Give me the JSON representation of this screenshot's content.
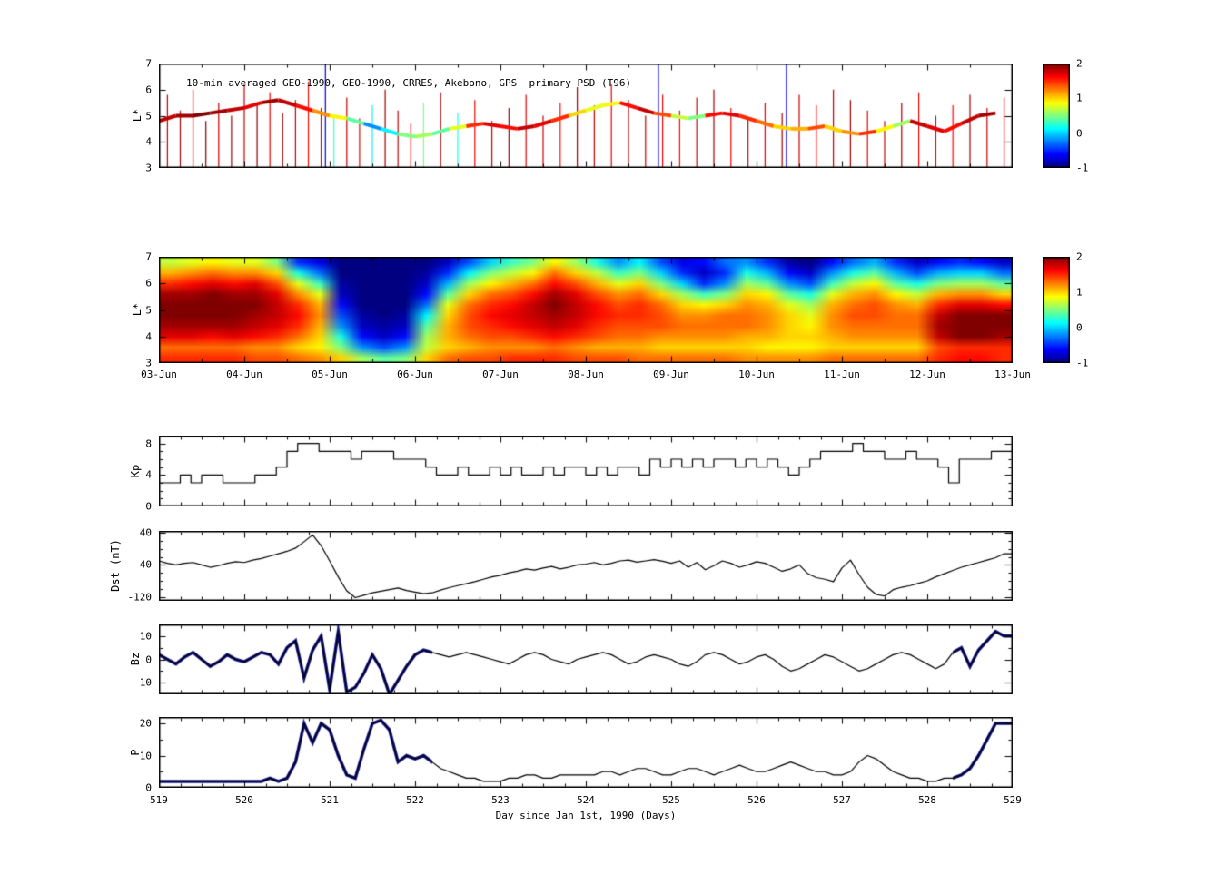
{
  "chart_data": [
    {
      "type": "scatter",
      "title": "10-min averaged GEO-1990, GEO-1990, CRRES, Akebono, GPS  primary PSD (T96)",
      "ylabel": "L*",
      "ylim": [
        3,
        7
      ],
      "yticks": [
        3,
        4,
        5,
        6,
        7
      ],
      "xlim": [
        519,
        529
      ],
      "colorbar": {
        "range": [
          -1,
          2
        ],
        "ticks": [
          2,
          1,
          0,
          -1
        ]
      },
      "geo_track": {
        "t_start": 519.0,
        "dt": 0.2,
        "L": [
          4.8,
          5.0,
          5.0,
          5.1,
          5.2,
          5.3,
          5.5,
          5.6,
          5.4,
          5.2,
          5.0,
          4.9,
          4.7,
          4.5,
          4.3,
          4.2,
          4.3,
          4.5,
          4.6,
          4.7,
          4.6,
          4.5,
          4.6,
          4.8,
          5.0,
          5.2,
          5.4,
          5.5,
          5.3,
          5.1,
          5.0,
          4.9,
          5.0,
          5.1,
          5.0,
          4.8,
          4.6,
          4.5,
          4.5,
          4.6,
          4.4,
          4.3,
          4.4,
          4.6,
          4.8,
          4.6,
          4.4,
          4.7,
          5.0,
          5.1
        ],
        "psd": [
          1.8,
          1.9,
          2.0,
          1.9,
          1.8,
          1.7,
          1.9,
          1.8,
          1.6,
          1.2,
          0.9,
          0.4,
          -0.2,
          0.1,
          0.5,
          0.6,
          0.4,
          0.8,
          1.5,
          1.7,
          1.6,
          1.8,
          1.7,
          1.5,
          1.0,
          0.8,
          0.9,
          1.6,
          1.8,
          1.4,
          0.7,
          0.5,
          1.6,
          1.7,
          1.5,
          1.3,
          1.0,
          1.1,
          1.4,
          1.0,
          1.2,
          1.5,
          0.9,
          0.6,
          1.8,
          1.7,
          1.6,
          1.8,
          1.9,
          1.8
        ]
      },
      "spikes": {
        "L_bottom": 3,
        "t": [
          519.1,
          519.25,
          519.4,
          519.55,
          519.7,
          519.85,
          520.0,
          520.15,
          520.3,
          520.45,
          520.6,
          520.75,
          520.9,
          520.95,
          521.05,
          521.2,
          521.35,
          521.5,
          521.65,
          521.8,
          521.95,
          522.1,
          522.3,
          522.5,
          522.7,
          522.9,
          523.1,
          523.3,
          523.5,
          523.7,
          523.9,
          524.1,
          524.3,
          524.5,
          524.7,
          524.85,
          524.9,
          525.1,
          525.3,
          525.5,
          525.7,
          525.9,
          526.1,
          526.3,
          526.35,
          526.5,
          526.7,
          526.9,
          527.1,
          527.3,
          527.5,
          527.7,
          527.9,
          528.1,
          528.3,
          528.5,
          528.7,
          528.9
        ],
        "L_top": [
          5.8,
          5.2,
          6.0,
          4.8,
          5.5,
          5.0,
          6.2,
          5.4,
          5.9,
          5.1,
          5.6,
          6.3,
          5.3,
          7.0,
          5.0,
          5.7,
          4.9,
          5.4,
          6.0,
          5.2,
          4.7,
          5.5,
          5.9,
          5.1,
          5.6,
          4.8,
          5.3,
          5.8,
          5.0,
          5.5,
          6.1,
          5.4,
          6.2,
          5.6,
          5.0,
          7.0,
          5.8,
          5.2,
          5.7,
          6.0,
          5.3,
          4.9,
          5.5,
          5.1,
          7.0,
          5.8,
          5.4,
          6.0,
          5.6,
          5.2,
          4.8,
          5.5,
          5.9,
          5.0,
          5.4,
          5.8,
          5.3,
          5.7
        ],
        "psd": [
          1.8,
          1.9,
          1.7,
          2.0,
          1.8,
          1.9,
          1.8,
          2.0,
          1.7,
          1.9,
          1.8,
          1.6,
          1.9,
          -0.8,
          0.3,
          1.8,
          1.7,
          0.1,
          1.9,
          1.8,
          1.6,
          0.5,
          1.9,
          0.2,
          1.7,
          1.8,
          1.9,
          1.7,
          1.8,
          1.6,
          1.9,
          1.8,
          1.7,
          1.9,
          1.8,
          -0.8,
          1.7,
          1.6,
          1.8,
          1.9,
          1.7,
          1.8,
          1.7,
          1.9,
          -0.7,
          1.8,
          1.6,
          1.8,
          1.9,
          1.7,
          1.8,
          1.9,
          1.7,
          1.8,
          1.6,
          1.9,
          1.8,
          1.7
        ]
      }
    },
    {
      "type": "heatmap",
      "ylabel": "L*",
      "ylim": [
        3,
        7
      ],
      "yticks": [
        3,
        4,
        5,
        6,
        7
      ],
      "xlim": [
        519,
        529
      ],
      "xticklabels": [
        "03-Jun",
        "04-Jun",
        "05-Jun",
        "06-Jun",
        "07-Jun",
        "08-Jun",
        "09-Jun",
        "10-Jun",
        "11-Jun",
        "12-Jun",
        "13-Jun"
      ],
      "colorbar": {
        "range": [
          -1,
          2
        ],
        "ticks": [
          2,
          1,
          0,
          -1
        ]
      },
      "t_start": 519,
      "dt": 0.25,
      "columns_top_to_bottom": [
        [
          0.7,
          1.1,
          1.5,
          1.9,
          2.0,
          2.0,
          1.9,
          1.7,
          1.3,
          1.5
        ],
        [
          0.8,
          1.2,
          1.6,
          1.9,
          2.0,
          2.0,
          1.9,
          1.7,
          1.3,
          1.5
        ],
        [
          0.9,
          1.3,
          1.7,
          2.0,
          2.0,
          2.0,
          1.9,
          1.6,
          1.3,
          1.5
        ],
        [
          0.8,
          1.2,
          1.6,
          1.9,
          2.0,
          2.0,
          1.9,
          1.7,
          1.3,
          1.5
        ],
        [
          0.8,
          1.2,
          1.7,
          1.9,
          2.0,
          1.9,
          1.8,
          1.6,
          1.2,
          1.4
        ],
        [
          0.5,
          1.0,
          1.4,
          1.7,
          1.8,
          1.8,
          1.7,
          1.5,
          1.2,
          1.4
        ],
        [
          -0.5,
          0.2,
          0.8,
          1.2,
          1.5,
          1.6,
          1.5,
          1.3,
          1.0,
          1.3
        ],
        [
          -0.7,
          -0.3,
          0.3,
          0.8,
          1.1,
          1.2,
          1.1,
          1.0,
          0.9,
          1.2
        ],
        [
          -1,
          -1,
          -0.9,
          -0.8,
          -0.6,
          -0.4,
          -0.2,
          0.2,
          0.5,
          1.0
        ],
        [
          -1,
          -1,
          -1,
          -1,
          -1,
          -0.9,
          -0.8,
          -0.6,
          -0.2,
          0.6
        ],
        [
          -1,
          -1,
          -1,
          -1,
          -1,
          -1,
          -0.9,
          -0.8,
          -0.4,
          0.4
        ],
        [
          -1,
          -1,
          -1,
          -1,
          -1,
          -0.9,
          -0.8,
          -0.6,
          -0.2,
          0.5
        ],
        [
          -1,
          -0.9,
          -0.8,
          -0.6,
          -0.3,
          0.1,
          0.4,
          0.6,
          0.7,
          1.0
        ],
        [
          -0.8,
          -0.5,
          -0.1,
          0.4,
          0.8,
          1.0,
          1.1,
          1.1,
          1.0,
          1.3
        ],
        [
          -0.4,
          0.1,
          0.6,
          1.0,
          1.3,
          1.4,
          1.4,
          1.3,
          1.1,
          1.4
        ],
        [
          0.0,
          0.5,
          0.9,
          1.3,
          1.5,
          1.6,
          1.5,
          1.4,
          1.2,
          1.4
        ],
        [
          0.3,
          0.7,
          1.1,
          1.4,
          1.6,
          1.7,
          1.6,
          1.4,
          1.2,
          1.5
        ],
        [
          0.5,
          0.9,
          1.3,
          1.6,
          1.8,
          1.8,
          1.7,
          1.5,
          1.2,
          1.5
        ],
        [
          0.9,
          1.3,
          1.6,
          1.9,
          2.0,
          1.9,
          1.8,
          1.6,
          1.3,
          1.5
        ],
        [
          0.6,
          1.0,
          1.4,
          1.7,
          1.8,
          1.8,
          1.7,
          1.5,
          1.2,
          1.4
        ],
        [
          0.2,
          0.7,
          1.1,
          1.4,
          1.6,
          1.6,
          1.5,
          1.4,
          1.1,
          1.4
        ],
        [
          -0.2,
          0.3,
          0.8,
          1.2,
          1.4,
          1.5,
          1.4,
          1.3,
          1.1,
          1.4
        ],
        [
          0.1,
          0.5,
          1.0,
          1.3,
          1.5,
          1.5,
          1.4,
          1.3,
          1.1,
          1.3
        ],
        [
          -0.4,
          0.0,
          0.5,
          1.0,
          1.3,
          1.4,
          1.4,
          1.2,
          1.0,
          1.3
        ],
        [
          -0.7,
          -0.5,
          0.0,
          0.6,
          1.0,
          1.2,
          1.3,
          1.2,
          1.0,
          1.3
        ],
        [
          -0.6,
          -0.8,
          -0.5,
          0.3,
          0.9,
          1.2,
          1.3,
          1.2,
          1.0,
          1.3
        ],
        [
          -0.3,
          -0.5,
          -0.2,
          0.5,
          1.0,
          1.3,
          1.3,
          1.2,
          1.0,
          1.3
        ],
        [
          -0.2,
          0.2,
          0.6,
          1.0,
          1.2,
          1.3,
          1.3,
          1.1,
          1.0,
          1.2
        ],
        [
          -0.5,
          -0.1,
          0.4,
          0.9,
          1.1,
          1.2,
          1.2,
          1.1,
          0.9,
          1.2
        ],
        [
          -0.9,
          -0.6,
          -0.2,
          0.4,
          0.8,
          1.0,
          1.0,
          1.0,
          0.9,
          1.2
        ],
        [
          -1.0,
          -0.8,
          -0.4,
          0.2,
          0.6,
          0.8,
          0.9,
          1.0,
          0.9,
          1.2
        ],
        [
          -0.6,
          -0.2,
          0.3,
          0.8,
          1.1,
          1.2,
          1.2,
          1.1,
          1.0,
          1.3
        ],
        [
          -0.3,
          0.2,
          0.7,
          1.1,
          1.3,
          1.4,
          1.3,
          1.2,
          1.0,
          1.3
        ],
        [
          -0.1,
          0.4,
          0.9,
          1.2,
          1.4,
          1.4,
          1.3,
          1.2,
          1.0,
          1.3
        ],
        [
          -0.5,
          -0.1,
          0.4,
          0.9,
          1.2,
          1.3,
          1.3,
          1.2,
          1.0,
          1.3
        ],
        [
          -0.8,
          -0.4,
          0.2,
          0.7,
          1.1,
          1.3,
          1.3,
          1.2,
          1.0,
          1.3
        ],
        [
          -0.6,
          -0.1,
          0.5,
          1.1,
          1.5,
          1.8,
          1.9,
          1.8,
          1.4,
          1.5
        ],
        [
          -0.5,
          0.0,
          0.6,
          1.2,
          1.7,
          2.0,
          2.0,
          2.0,
          1.5,
          1.6
        ],
        [
          -0.6,
          0.0,
          0.6,
          1.2,
          1.7,
          2.0,
          2.0,
          2.0,
          1.5,
          1.6
        ],
        [
          -0.8,
          -0.3,
          0.4,
          1.0,
          1.6,
          2.0,
          2.0,
          1.9,
          1.5,
          1.5
        ]
      ]
    },
    {
      "type": "line",
      "ylabel": "Kp",
      "ylim": [
        0,
        9
      ],
      "yticks": [
        0,
        4,
        8
      ],
      "xlim": [
        519,
        529
      ],
      "t_start": 519,
      "dt": 0.125,
      "step": true,
      "values": [
        3,
        3,
        4,
        3,
        4,
        4,
        3,
        3,
        3,
        4,
        4,
        5,
        7,
        8,
        8,
        7,
        7,
        7,
        6,
        7,
        7,
        7,
        6,
        6,
        6,
        5,
        4,
        4,
        5,
        4,
        4,
        5,
        4,
        5,
        4,
        4,
        5,
        4,
        5,
        5,
        4,
        5,
        4,
        5,
        5,
        4,
        6,
        5,
        6,
        5,
        6,
        5,
        6,
        6,
        5,
        6,
        5,
        6,
        5,
        4,
        5,
        6,
        7,
        7,
        7,
        8,
        7,
        7,
        6,
        6,
        7,
        6,
        6,
        5,
        3,
        6,
        6,
        6,
        7,
        7
      ]
    },
    {
      "type": "line",
      "ylabel": "Dst (nT)",
      "ylim": [
        -130,
        45
      ],
      "yticks": [
        40,
        -40,
        -120
      ],
      "xlim": [
        519,
        529
      ],
      "t_start": 519,
      "dt": 0.1,
      "values": [
        -30,
        -36,
        -40,
        -36,
        -34,
        -40,
        -46,
        -42,
        -36,
        -32,
        -34,
        -28,
        -24,
        -18,
        -12,
        -6,
        2,
        18,
        35,
        8,
        -30,
        -70,
        -105,
        -122,
        -116,
        -110,
        -106,
        -102,
        -98,
        -104,
        -108,
        -112,
        -110,
        -103,
        -97,
        -92,
        -87,
        -82,
        -76,
        -70,
        -66,
        -60,
        -56,
        -50,
        -53,
        -48,
        -44,
        -50,
        -46,
        -40,
        -38,
        -34,
        -40,
        -36,
        -30,
        -28,
        -33,
        -30,
        -27,
        -31,
        -36,
        -30,
        -46,
        -34,
        -52,
        -42,
        -30,
        -36,
        -46,
        -40,
        -32,
        -36,
        -46,
        -56,
        -50,
        -40,
        -62,
        -72,
        -76,
        -82,
        -48,
        -28,
        -64,
        -96,
        -114,
        -118,
        -102,
        -96,
        -92,
        -86,
        -80,
        -70,
        -62,
        -54,
        -46,
        -40,
        -34,
        -28,
        -22,
        -12
      ]
    },
    {
      "type": "line",
      "ylabel": "Bz",
      "ylim": [
        -15,
        15
      ],
      "yticks": [
        10,
        0,
        -10
      ],
      "xlim": [
        519,
        529
      ],
      "t_start": 519,
      "dt": 0.1,
      "observed_segments": [
        [
          519,
          522.2
        ],
        [
          528.3,
          529
        ]
      ],
      "observed_color": "#14148c",
      "values": [
        2,
        0,
        -2,
        1,
        3,
        0,
        -3,
        -1,
        2,
        0,
        -1,
        1,
        3,
        2,
        -2,
        5,
        8,
        -8,
        4,
        10,
        -13,
        12,
        -14,
        -12,
        -6,
        2,
        -4,
        -15,
        -9,
        -3,
        2,
        4,
        3,
        2,
        1,
        2,
        3,
        2,
        1,
        0,
        -1,
        -2,
        0,
        2,
        3,
        2,
        0,
        -1,
        -2,
        0,
        1,
        2,
        3,
        2,
        0,
        -2,
        -1,
        1,
        2,
        1,
        0,
        -2,
        -3,
        -1,
        2,
        3,
        2,
        0,
        -2,
        -1,
        1,
        2,
        0,
        -3,
        -5,
        -4,
        -2,
        0,
        2,
        1,
        -1,
        -3,
        -5,
        -4,
        -2,
        0,
        2,
        3,
        2,
        0,
        -2,
        -4,
        -2,
        3,
        5,
        -3,
        4,
        8,
        12,
        10
      ]
    },
    {
      "type": "line",
      "ylabel": "P",
      "ylim": [
        0,
        22
      ],
      "yticks": [
        0,
        10,
        20
      ],
      "xlim": [
        519,
        529
      ],
      "xticks": [
        519,
        520,
        521,
        522,
        523,
        524,
        525,
        526,
        527,
        528,
        529
      ],
      "xlabel": "Day since Jan 1st, 1990 (Days)",
      "t_start": 519,
      "dt": 0.1,
      "observed_segments": [
        [
          519,
          522.2
        ],
        [
          528.3,
          529
        ]
      ],
      "observed_color": "#14148c",
      "values": [
        2,
        2,
        2,
        2,
        2,
        2,
        2,
        2,
        2,
        2,
        2,
        2,
        2,
        3,
        2,
        3,
        8,
        20,
        14,
        20,
        18,
        10,
        4,
        3,
        12,
        20,
        21,
        18,
        8,
        10,
        9,
        10,
        8,
        6,
        5,
        4,
        3,
        3,
        2,
        2,
        2,
        3,
        3,
        4,
        4,
        3,
        3,
        4,
        4,
        4,
        4,
        4,
        5,
        5,
        4,
        5,
        6,
        6,
        5,
        4,
        4,
        5,
        6,
        6,
        5,
        4,
        5,
        6,
        7,
        6,
        5,
        5,
        6,
        7,
        8,
        7,
        6,
        5,
        5,
        4,
        4,
        5,
        8,
        10,
        9,
        7,
        5,
        4,
        3,
        3,
        2,
        2,
        3,
        3,
        4,
        6,
        10,
        15,
        20,
        20
      ]
    }
  ]
}
